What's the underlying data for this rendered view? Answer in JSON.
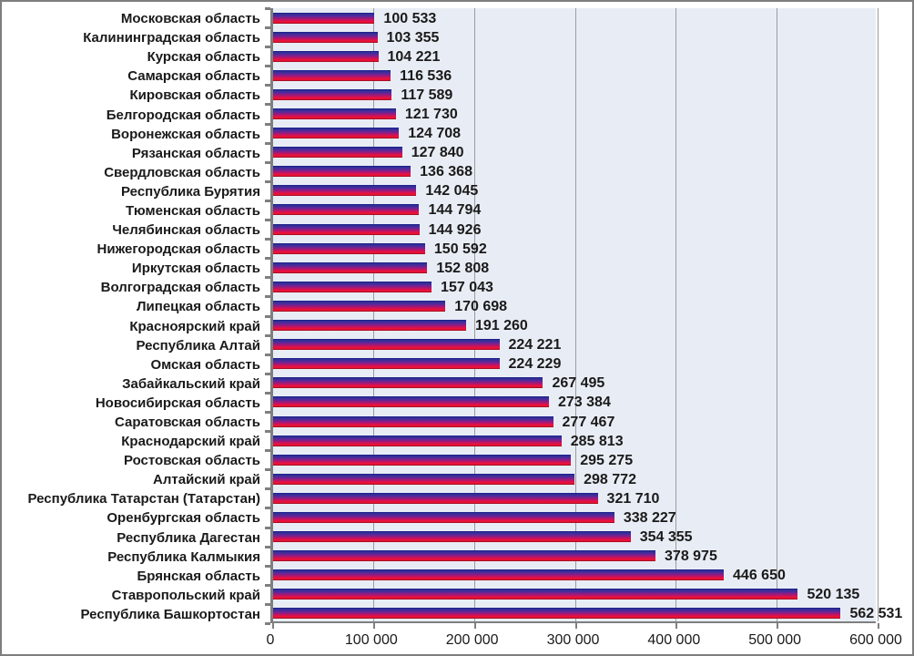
{
  "chart_style": {
    "plot_background": "#e8edf5",
    "page_background": "#ffffff",
    "frame_border_color": "#7e7e7e",
    "gridline_color": "#9b9b9b",
    "axis_color": "#7f7f7f",
    "text_color": "#1a1a1a",
    "bar_gradient": [
      "#1d1d84",
      "#30309a",
      "#5a2899",
      "#8d1d83",
      "#c11464",
      "#ea113c",
      "#ee1234",
      "#860d1e"
    ]
  },
  "chart_data": {
    "type": "bar",
    "orientation": "horizontal",
    "title": "",
    "xlabel": "",
    "ylabel": "",
    "grid": true,
    "legend": false,
    "xlim": [
      0,
      600000
    ],
    "xtick_values": [
      0,
      100000,
      200000,
      300000,
      400000,
      500000,
      600000
    ],
    "xtick_labels": [
      "0",
      "100 000",
      "200 000",
      "300 000",
      "400 000",
      "500 000",
      "600 000"
    ],
    "categories": [
      "Московская область",
      "Калининградская область",
      "Курская область",
      "Самарская область",
      "Кировская область",
      "Белгородская область",
      "Воронежская область",
      "Рязанская область",
      "Свердловская область",
      "Республика Бурятия",
      "Тюменская область",
      "Челябинская область",
      "Нижегородская область",
      "Иркутская область",
      "Волгоградская область",
      "Липецкая область",
      "Красноярский край",
      "Республика Алтай",
      "Омская область",
      "Забайкальский край",
      "Новосибирская область",
      "Саратовская область",
      "Краснодарский край",
      "Ростовская область",
      "Алтайский край",
      "Республика Татарстан (Татарстан)",
      "Оренбургская область",
      "Республика Дагестан",
      "Республика Калмыкия",
      "Брянская область",
      "Ставропольский край",
      "Республика Башкортостан"
    ],
    "values": [
      100533,
      103355,
      104221,
      116536,
      117589,
      121730,
      124708,
      127840,
      136368,
      142045,
      144794,
      144926,
      150592,
      152808,
      157043,
      170698,
      191260,
      224221,
      224229,
      267495,
      273384,
      277467,
      285813,
      295275,
      298772,
      321710,
      338227,
      354355,
      378975,
      446650,
      520135,
      562531
    ],
    "value_labels": [
      "100 533",
      "103 355",
      "104 221",
      "116 536",
      "117 589",
      "121 730",
      "124 708",
      "127 840",
      "136 368",
      "142 045",
      "144 794",
      "144 926",
      "150 592",
      "152 808",
      "157 043",
      "170 698",
      "191 260",
      "224 221",
      "224 229",
      "267 495",
      "273 384",
      "277 467",
      "285 813",
      "295 275",
      "298 772",
      "321 710",
      "338 227",
      "354 355",
      "378 975",
      "446 650",
      "520 135",
      "562 531"
    ]
  }
}
